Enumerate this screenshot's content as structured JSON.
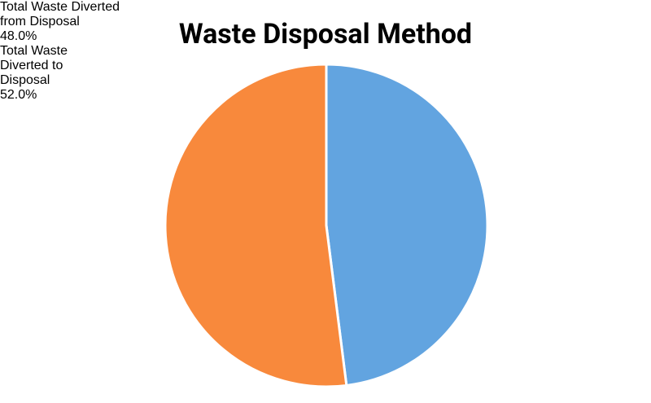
{
  "chart_data": {
    "type": "pie",
    "title": "Waste Disposal Method",
    "categories": [
      "Total Waste Diverted from Disposal",
      "Total Waste Diverted to Disposal"
    ],
    "values": [
      48.0,
      52.0
    ],
    "value_labels": [
      "48.0%",
      "52.0%"
    ],
    "colors": [
      "#62a4e0",
      "#f8893c"
    ]
  }
}
